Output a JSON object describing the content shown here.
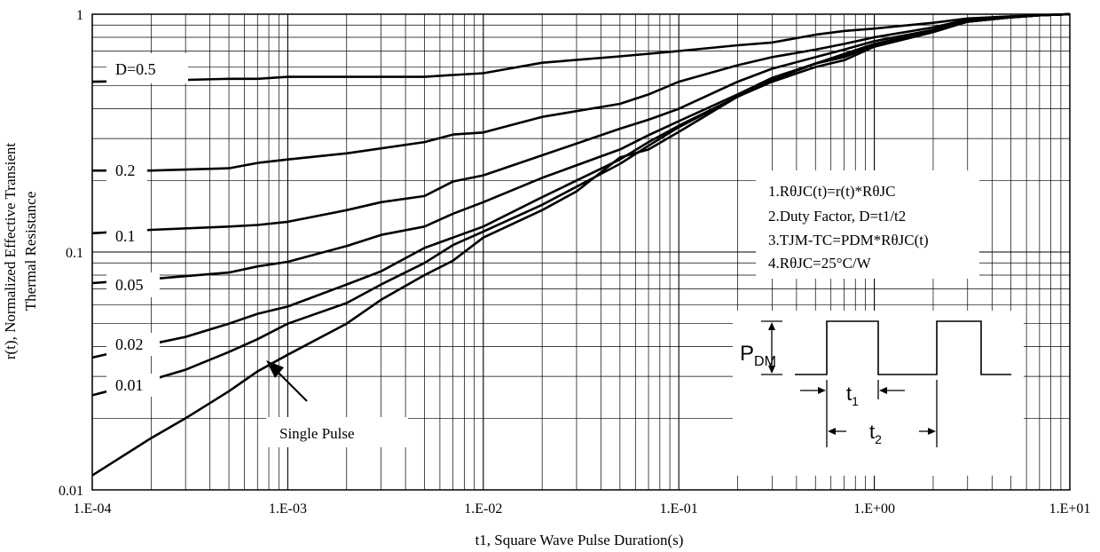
{
  "chart_data": {
    "type": "line",
    "title": "",
    "xlabel": "t1, Square Wave Pulse Duration(s)",
    "ylabel": "r(t), Normalized Effective Transient Thermal Resistance",
    "ylabel_lines": [
      "r(t), Normalized Effective Transient",
      "Thermal Resistance"
    ],
    "xscale": "log",
    "yscale": "log",
    "xlim": [
      0.0001,
      10
    ],
    "ylim": [
      0.01,
      1
    ],
    "grid": true,
    "x_tick_labels": [
      "1.E-04",
      "1.E-03",
      "1.E-02",
      "1.E-01",
      "1.E+00",
      "1.E+01"
    ],
    "y_tick_labels": [
      "0.01",
      "0.1",
      "1"
    ],
    "series": [
      {
        "name": "D=0.5",
        "x": [
          0.0001,
          0.0002,
          0.0005,
          0.0007,
          0.001,
          0.002,
          0.005,
          0.007,
          0.01,
          0.02,
          0.05,
          0.1,
          0.2,
          0.3,
          0.5,
          0.7,
          1,
          2,
          3,
          5,
          7,
          10
        ],
        "y": [
          0.52,
          0.525,
          0.535,
          0.535,
          0.545,
          0.545,
          0.545,
          0.555,
          0.565,
          0.625,
          0.665,
          0.7,
          0.74,
          0.76,
          0.82,
          0.85,
          0.87,
          0.92,
          0.96,
          0.98,
          0.99,
          1.0
        ]
      },
      {
        "name": "0.2",
        "x": [
          0.0001,
          0.0002,
          0.0005,
          0.0007,
          0.001,
          0.002,
          0.005,
          0.007,
          0.01,
          0.02,
          0.05,
          0.07,
          0.1,
          0.2,
          0.3,
          0.5,
          0.7,
          1,
          2,
          3,
          5,
          7,
          10
        ],
        "y": [
          0.22,
          0.22,
          0.225,
          0.237,
          0.245,
          0.26,
          0.29,
          0.312,
          0.318,
          0.37,
          0.42,
          0.46,
          0.52,
          0.61,
          0.66,
          0.71,
          0.75,
          0.8,
          0.88,
          0.95,
          0.97,
          0.99,
          1.0
        ]
      },
      {
        "name": "0.1",
        "x": [
          0.0001,
          0.0002,
          0.0005,
          0.0007,
          0.001,
          0.002,
          0.003,
          0.005,
          0.007,
          0.01,
          0.02,
          0.05,
          0.07,
          0.1,
          0.2,
          0.3,
          0.5,
          0.7,
          1,
          2,
          3,
          5,
          7,
          10
        ],
        "y": [
          0.12,
          0.124,
          0.128,
          0.13,
          0.134,
          0.15,
          0.162,
          0.172,
          0.198,
          0.21,
          0.255,
          0.33,
          0.36,
          0.4,
          0.52,
          0.59,
          0.66,
          0.71,
          0.77,
          0.86,
          0.94,
          0.97,
          0.99,
          1.0
        ]
      },
      {
        "name": "0.05",
        "x": [
          0.0001,
          0.0002,
          0.0005,
          0.0007,
          0.001,
          0.002,
          0.003,
          0.005,
          0.007,
          0.01,
          0.02,
          0.05,
          0.07,
          0.1,
          0.2,
          0.3,
          0.5,
          0.7,
          1,
          2,
          3,
          5,
          7,
          10
        ],
        "y": [
          0.074,
          0.077,
          0.082,
          0.087,
          0.091,
          0.106,
          0.118,
          0.128,
          0.145,
          0.162,
          0.205,
          0.27,
          0.31,
          0.355,
          0.46,
          0.54,
          0.62,
          0.68,
          0.75,
          0.85,
          0.93,
          0.97,
          0.99,
          1.0
        ]
      },
      {
        "name": "0.02",
        "x": [
          0.0001,
          0.0002,
          0.0003,
          0.0005,
          0.0007,
          0.001,
          0.002,
          0.003,
          0.005,
          0.007,
          0.01,
          0.02,
          0.05,
          0.07,
          0.1,
          0.2,
          0.3,
          0.5,
          0.7,
          1,
          2,
          3,
          5,
          7,
          10
        ],
        "y": [
          0.036,
          0.041,
          0.044,
          0.05,
          0.055,
          0.059,
          0.073,
          0.083,
          0.104,
          0.115,
          0.128,
          0.17,
          0.245,
          0.29,
          0.34,
          0.45,
          0.53,
          0.62,
          0.67,
          0.74,
          0.85,
          0.93,
          0.97,
          0.99,
          1.0
        ]
      },
      {
        "name": "0.01",
        "x": [
          0.0001,
          0.0002,
          0.0003,
          0.0005,
          0.0007,
          0.001,
          0.002,
          0.003,
          0.005,
          0.007,
          0.01,
          0.02,
          0.05,
          0.07,
          0.1,
          0.2,
          0.3,
          0.5,
          0.7,
          1,
          2,
          3,
          5,
          7,
          10
        ],
        "y": [
          0.025,
          0.029,
          0.032,
          0.038,
          0.043,
          0.05,
          0.061,
          0.073,
          0.09,
          0.107,
          0.122,
          0.158,
          0.235,
          0.28,
          0.335,
          0.45,
          0.53,
          0.62,
          0.66,
          0.74,
          0.85,
          0.93,
          0.97,
          0.99,
          1.0
        ]
      },
      {
        "name": "Single Pulse",
        "x": [
          0.0001,
          0.0002,
          0.0003,
          0.0005,
          0.0007,
          0.001,
          0.002,
          0.003,
          0.005,
          0.007,
          0.01,
          0.02,
          0.03,
          0.05,
          0.07,
          0.1,
          0.2,
          0.3,
          0.5,
          0.7,
          1,
          2,
          3,
          5,
          7,
          10
        ],
        "y": [
          0.0115,
          0.0165,
          0.02,
          0.026,
          0.0315,
          0.037,
          0.05,
          0.063,
          0.08,
          0.092,
          0.115,
          0.15,
          0.18,
          0.25,
          0.27,
          0.32,
          0.45,
          0.52,
          0.6,
          0.64,
          0.73,
          0.84,
          0.93,
          0.97,
          0.99,
          1.0
        ]
      }
    ],
    "annotations": [
      "1.RθJC(t)=r(t)*RθJC",
      "2.Duty Factor, D=t1/t2",
      "3.TJM-TC=PDM*RθJC(t)",
      "4.RθJC=25°C/W"
    ],
    "single_pulse_label": "Single Pulse",
    "inset": {
      "pdm_label_main": "P",
      "pdm_label_sub": "DM",
      "t1_label_main": "t",
      "t1_label_sub": "1",
      "t2_label_main": "t",
      "t2_label_sub": "2"
    }
  }
}
